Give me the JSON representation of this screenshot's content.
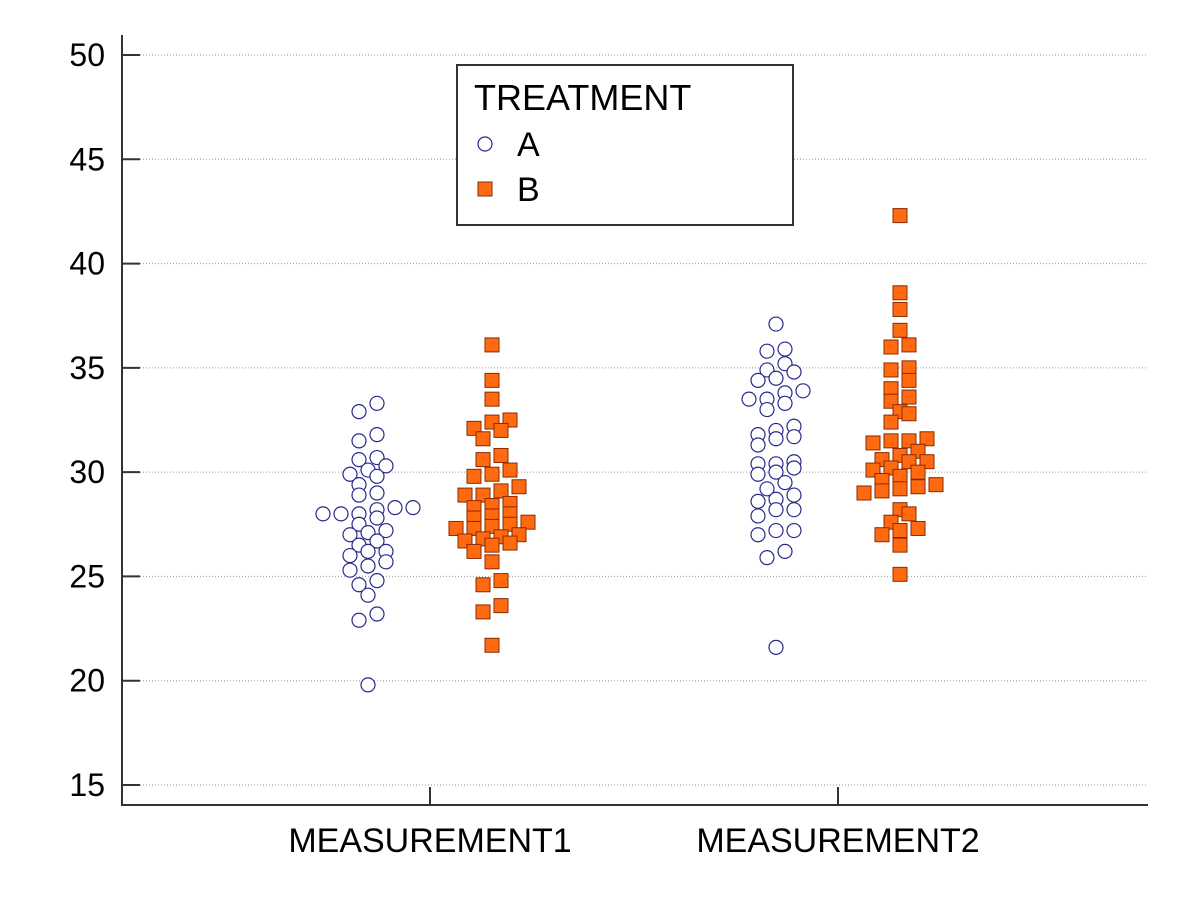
{
  "chart_data": {
    "type": "scatter",
    "title": "",
    "xlabel": "",
    "ylabel": "",
    "ylim": [
      15,
      50
    ],
    "yticks": [
      15,
      20,
      25,
      30,
      35,
      40,
      45,
      50
    ],
    "grid": "horizontal",
    "legend": {
      "title": "TREATMENT",
      "placement": "top-center"
    },
    "categories": [
      "MEASUREMENT1",
      "MEASUREMENT2"
    ],
    "series": [
      {
        "name": "A",
        "marker": "open-circle",
        "color": "#2a2a8a",
        "fill": "#ffffff",
        "values": [
          [
            33.3,
            32.9,
            31.8,
            31.5,
            30.7,
            30.6,
            30.3,
            30.1,
            29.9,
            29.8,
            29.4,
            29.0,
            28.9,
            28.3,
            28.3,
            28.2,
            28.0,
            28.0,
            28.0,
            27.8,
            27.5,
            27.2,
            27.1,
            27.0,
            26.7,
            26.5,
            26.2,
            26.2,
            26.0,
            25.7,
            25.5,
            25.3,
            24.8,
            24.6,
            24.1,
            23.2,
            22.9,
            19.8
          ],
          [
            37.1,
            35.9,
            35.8,
            35.2,
            34.9,
            34.8,
            34.5,
            34.4,
            33.9,
            33.8,
            33.5,
            33.5,
            33.3,
            33.0,
            32.2,
            32.0,
            31.8,
            31.7,
            31.6,
            31.3,
            30.5,
            30.4,
            30.4,
            30.2,
            30.0,
            29.9,
            29.5,
            29.2,
            28.9,
            28.7,
            28.6,
            28.2,
            28.2,
            27.9,
            27.2,
            27.2,
            27.0,
            26.2,
            25.9,
            21.6
          ]
        ]
      },
      {
        "name": "B",
        "marker": "filled-square",
        "color": "#8a2a00",
        "fill": "#ff6a10",
        "values": [
          [
            36.1,
            34.4,
            33.5,
            32.5,
            32.4,
            32.1,
            32.0,
            31.6,
            30.8,
            30.6,
            30.1,
            29.9,
            29.8,
            29.3,
            29.1,
            28.9,
            28.9,
            28.5,
            28.4,
            28.3,
            28.0,
            27.9,
            27.8,
            27.6,
            27.5,
            27.4,
            27.3,
            27.3,
            27.0,
            26.9,
            26.8,
            26.7,
            26.6,
            26.5,
            26.2,
            25.7,
            24.8,
            24.6,
            23.6,
            23.3,
            21.7
          ],
          [
            42.3,
            38.6,
            37.8,
            36.8,
            36.1,
            36.0,
            35.0,
            34.9,
            34.4,
            34.0,
            33.6,
            33.4,
            32.9,
            32.8,
            32.4,
            31.6,
            31.5,
            31.5,
            31.4,
            31.0,
            30.8,
            30.6,
            30.5,
            30.5,
            30.2,
            30.1,
            30.0,
            29.8,
            29.6,
            29.4,
            29.3,
            29.2,
            29.1,
            29.0,
            28.2,
            28.0,
            27.6,
            27.3,
            27.2,
            27.0,
            26.5,
            25.1
          ]
        ]
      }
    ]
  }
}
